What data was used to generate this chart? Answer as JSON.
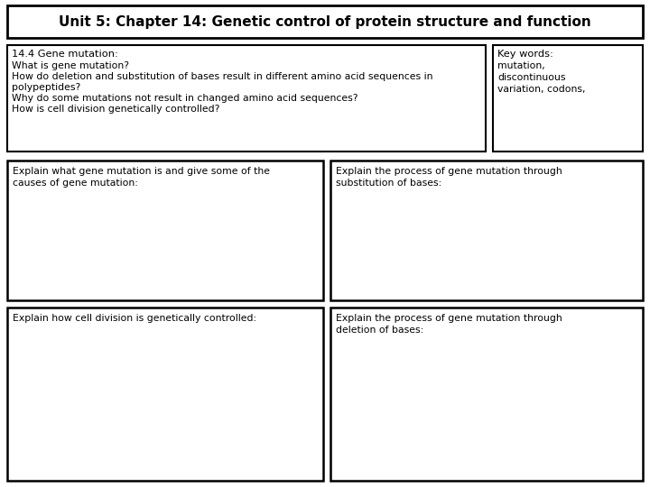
{
  "title": "Unit 5: Chapter 14: Genetic control of protein structure and function",
  "title_fontsize": 11,
  "bg_color": "#ffffff",
  "border_color": "#000000",
  "info_box": {
    "heading": "14.4 Gene mutation:",
    "lines": [
      "What is gene mutation?",
      "How do deletion and substitution of bases result in different amino acid sequences in",
      "polypeptides?",
      "Why do some mutations not result in changed amino acid sequences?",
      "How is cell division genetically controlled?"
    ]
  },
  "key_words_box": {
    "heading": "Key words:",
    "lines": [
      "mutation,",
      "discontinuous",
      "variation, codons,"
    ]
  },
  "activity_boxes": [
    {
      "text": "Explain what gene mutation is and give some of the\ncauses of gene mutation:",
      "col": 0,
      "row": 0
    },
    {
      "text": "Explain the process of gene mutation through\nsubstitution of bases:",
      "col": 1,
      "row": 0
    },
    {
      "text": "Explain how cell division is genetically controlled:",
      "col": 0,
      "row": 1
    },
    {
      "text": "Explain the process of gene mutation through\ndeletion of bases:",
      "col": 1,
      "row": 1
    }
  ],
  "font_family": "DejaVu Sans",
  "small_fontsize": 7.8,
  "heading_fontsize": 8.2
}
